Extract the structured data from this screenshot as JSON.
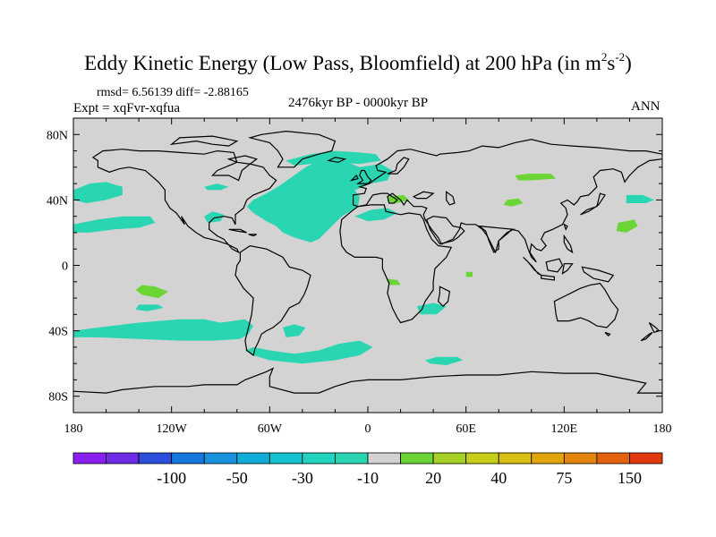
{
  "title": {
    "main": "Eddy Kinetic Energy (Low Pass, Bloomfield) at 200 hPa (in m",
    "sup1": "2",
    "mid": "s",
    "sup2": "-2",
    "end": ")"
  },
  "stats": "rmsd= 6.56139 diff= -2.88165",
  "experiment": "Expt = xqFvr-xqfua",
  "period": "2476kyr BP - 0000kyr BP",
  "season": "ANN",
  "map": {
    "lat_labels": [
      "80N",
      "40N",
      "0",
      "40S",
      "80S"
    ],
    "lat_values": [
      80,
      40,
      0,
      -40,
      -80
    ],
    "lon_labels": [
      "180",
      "120W",
      "60W",
      "0",
      "60E",
      "120E",
      "180"
    ],
    "lon_values": [
      -180,
      -120,
      -60,
      0,
      60,
      120,
      180
    ],
    "background_color": "#d3d3d3",
    "regions": [
      {
        "name": "north-atlantic-anomaly",
        "color": "#2ad5b2",
        "polygon": [
          [
            -62,
            44
          ],
          [
            -55,
            48
          ],
          [
            -45,
            55
          ],
          [
            -38,
            60
          ],
          [
            -30,
            64
          ],
          [
            -15,
            64
          ],
          [
            -5,
            60
          ],
          [
            8,
            62
          ],
          [
            15,
            58
          ],
          [
            12,
            52
          ],
          [
            2,
            50
          ],
          [
            -8,
            46
          ],
          [
            -5,
            42
          ],
          [
            -6,
            36
          ],
          [
            -16,
            30
          ],
          [
            -22,
            24
          ],
          [
            -25,
            21
          ],
          [
            -30,
            16
          ],
          [
            -35,
            14
          ],
          [
            -45,
            17
          ],
          [
            -52,
            20
          ],
          [
            -56,
            24
          ],
          [
            -62,
            27
          ],
          [
            -70,
            32
          ],
          [
            -74,
            36
          ],
          [
            -70,
            40
          ]
        ]
      },
      {
        "name": "arctic-atlantic-anomaly",
        "color": "#2ad5b2",
        "polygon": [
          [
            -50,
            64
          ],
          [
            -35,
            68
          ],
          [
            -20,
            70
          ],
          [
            -5,
            69
          ],
          [
            5,
            68
          ],
          [
            8,
            64
          ],
          [
            -5,
            62
          ],
          [
            -20,
            63
          ],
          [
            -35,
            62
          ],
          [
            -45,
            61
          ]
        ]
      },
      {
        "name": "north-pacific-anomaly",
        "color": "#2ad5b2",
        "polygon": [
          [
            -180,
            46
          ],
          [
            -170,
            50
          ],
          [
            -160,
            51
          ],
          [
            -150,
            48
          ],
          [
            -150,
            43
          ],
          [
            -160,
            40
          ],
          [
            -172,
            38
          ],
          [
            -180,
            40
          ]
        ]
      },
      {
        "name": "subtropical-pacific-anomaly",
        "color": "#2ad5b2",
        "polygon": [
          [
            -180,
            25
          ],
          [
            -165,
            28
          ],
          [
            -150,
            30
          ],
          [
            -133,
            30
          ],
          [
            -130,
            26
          ],
          [
            -140,
            23
          ],
          [
            -155,
            22
          ],
          [
            -170,
            20
          ],
          [
            -180,
            20
          ]
        ]
      },
      {
        "name": "central-america-anomaly",
        "color": "#2ad5b2",
        "polygon": [
          [
            -100,
            30
          ],
          [
            -95,
            33
          ],
          [
            -88,
            31
          ],
          [
            -90,
            27
          ],
          [
            -98,
            26
          ]
        ]
      },
      {
        "name": "pacific-arctic-anomaly",
        "color": "#2ad5b2",
        "polygon": [
          [
            -100,
            48
          ],
          [
            -92,
            50
          ],
          [
            -85,
            48
          ],
          [
            -90,
            46
          ],
          [
            -98,
            46
          ]
        ]
      },
      {
        "name": "south-pacific-anomaly",
        "color": "#2ad5b2",
        "polygon": [
          [
            -180,
            -40
          ],
          [
            -165,
            -38
          ],
          [
            -140,
            -35
          ],
          [
            -115,
            -33
          ],
          [
            -100,
            -33
          ],
          [
            -90,
            -35
          ],
          [
            -75,
            -33
          ],
          [
            -70,
            -37
          ],
          [
            -73,
            -42
          ],
          [
            -78,
            -45
          ],
          [
            -95,
            -46
          ],
          [
            -115,
            -46
          ],
          [
            -140,
            -45
          ],
          [
            -165,
            -44
          ],
          [
            -180,
            -44
          ]
        ]
      },
      {
        "name": "southern-ocean-anomaly",
        "color": "#2ad5b2",
        "polygon": [
          [
            -75,
            -52
          ],
          [
            -70,
            -55
          ],
          [
            -60,
            -58
          ],
          [
            -40,
            -60
          ],
          [
            -20,
            -58
          ],
          [
            -5,
            -55
          ],
          [
            3,
            -50
          ],
          [
            -5,
            -46
          ],
          [
            -18,
            -48
          ],
          [
            -30,
            -52
          ],
          [
            -45,
            -54
          ],
          [
            -60,
            -52
          ],
          [
            -70,
            -50
          ]
        ]
      },
      {
        "name": "south-atlantic-anomaly",
        "color": "#2ad5b2",
        "polygon": [
          [
            -52,
            -38
          ],
          [
            -45,
            -36
          ],
          [
            -38,
            -38
          ],
          [
            -42,
            -43
          ],
          [
            -50,
            -44
          ]
        ]
      },
      {
        "name": "sw-pacific-anomaly",
        "color": "#2ad5b2",
        "polygon": [
          [
            -140,
            -24
          ],
          [
            -128,
            -24
          ],
          [
            -125,
            -26
          ],
          [
            -135,
            -28
          ],
          [
            -142,
            -27
          ]
        ]
      },
      {
        "name": "north-africa-anomaly",
        "color": "#2ad5b2",
        "polygon": [
          [
            -8,
            30
          ],
          [
            2,
            34
          ],
          [
            12,
            35
          ],
          [
            18,
            32
          ],
          [
            10,
            28
          ],
          [
            0,
            27
          ]
        ]
      },
      {
        "name": "madagascar-anomaly",
        "color": "#2ad5b2",
        "polygon": [
          [
            30,
            -25
          ],
          [
            40,
            -23
          ],
          [
            48,
            -25
          ],
          [
            42,
            -30
          ],
          [
            32,
            -30
          ]
        ]
      },
      {
        "name": "indian-ocean-anomaly",
        "color": "#2ad5b2",
        "polygon": [
          [
            35,
            -58
          ],
          [
            42,
            -56
          ],
          [
            55,
            -56
          ],
          [
            58,
            -58
          ],
          [
            48,
            -61
          ],
          [
            38,
            -60
          ]
        ]
      },
      {
        "name": "east-asia-anomaly",
        "color": "#2ad5b2",
        "polygon": [
          [
            158,
            43
          ],
          [
            168,
            43
          ],
          [
            175,
            40
          ],
          [
            170,
            38
          ],
          [
            158,
            38
          ]
        ]
      },
      {
        "name": "eastern-europe-anomaly",
        "color": "#6bd535",
        "polygon": [
          [
            12,
            42
          ],
          [
            22,
            43
          ],
          [
            25,
            40
          ],
          [
            18,
            38
          ],
          [
            12,
            39
          ]
        ]
      },
      {
        "name": "central-asia-anomaly",
        "color": "#6bd535",
        "polygon": [
          [
            90,
            55
          ],
          [
            98,
            56
          ],
          [
            112,
            56
          ],
          [
            115,
            53
          ],
          [
            100,
            52
          ],
          [
            92,
            52
          ]
        ]
      },
      {
        "name": "tibet-anomaly",
        "color": "#6bd535",
        "polygon": [
          [
            85,
            40
          ],
          [
            92,
            41
          ],
          [
            95,
            38
          ],
          [
            88,
            36
          ],
          [
            83,
            37
          ]
        ]
      },
      {
        "name": "northwest-pacific-anomaly",
        "color": "#6bd535",
        "polygon": [
          [
            153,
            26
          ],
          [
            163,
            28
          ],
          [
            165,
            24
          ],
          [
            158,
            20
          ],
          [
            152,
            21
          ]
        ]
      },
      {
        "name": "east-pacific-anomaly",
        "color": "#6bd535",
        "polygon": [
          [
            -138,
            -12
          ],
          [
            -130,
            -13
          ],
          [
            -122,
            -16
          ],
          0,
          [
            -128,
            -20
          ],
          [
            -138,
            -18
          ],
          [
            -142,
            -15
          ]
        ]
      },
      {
        "name": "west-africa-anomaly",
        "color": "#6bd535",
        "polygon": [
          [
            11,
            -8
          ],
          [
            18,
            -9
          ],
          [
            20,
            -12
          ],
          [
            13,
            -12
          ]
        ]
      },
      {
        "name": "indian-small-anomaly",
        "color": "#6bd535",
        "polygon": [
          [
            60,
            -4
          ],
          [
            64,
            -4
          ],
          [
            64,
            -7
          ],
          [
            60,
            -7
          ]
        ]
      }
    ]
  },
  "colorbar": {
    "colors": [
      "#8a1ff0",
      "#6b2ae6",
      "#2b4fdc",
      "#1677df",
      "#1a93df",
      "#12acd8",
      "#14c1cd",
      "#22d3bf",
      "#2ad5b2",
      "#d3d3d3",
      "#6bd535",
      "#a7d126",
      "#c8cd1a",
      "#dbbe12",
      "#e3a410",
      "#e4850f",
      "#e3620f",
      "#e23a0e"
    ],
    "tick_labels": [
      "-100",
      "-50",
      "-30",
      "-10",
      "20",
      "40",
      "75",
      "150"
    ]
  }
}
